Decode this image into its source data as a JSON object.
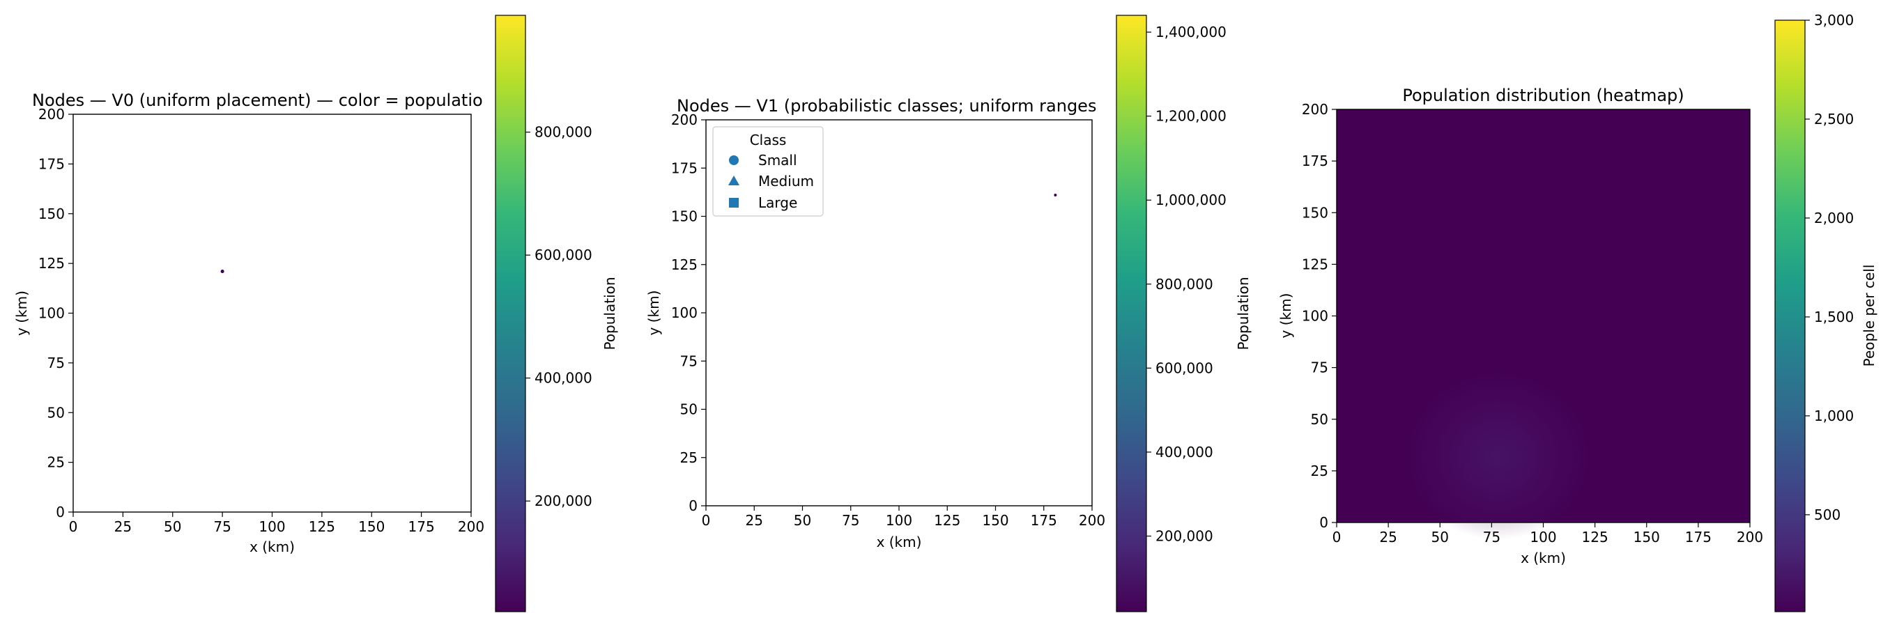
{
  "colors": {
    "viridis": [
      "#440154",
      "#482878",
      "#3e4989",
      "#31688e",
      "#26828e",
      "#1f9e89",
      "#35b779",
      "#6ece58",
      "#b5de2b",
      "#fde725"
    ],
    "marker": "#1f77b4",
    "heatmap_background": "#440154",
    "heatmap_blob": "#481a6c"
  },
  "chart_data": [
    {
      "type": "scatter",
      "title": "Nodes — V0 (uniform placement) — color = populatio",
      "xlabel": "x (km)",
      "ylabel": "y (km)",
      "xlim": [
        0,
        200
      ],
      "ylim": [
        0,
        200
      ],
      "xticks": [
        0,
        25,
        50,
        75,
        100,
        125,
        150,
        175,
        200
      ],
      "yticks": [
        0,
        25,
        50,
        75,
        100,
        125,
        150,
        175,
        200
      ],
      "xtick_labels": [
        "0",
        "25",
        "50",
        "75",
        "100",
        "125",
        "150",
        "175",
        "200"
      ],
      "ytick_labels": [
        "0",
        "25",
        "50",
        "75",
        "100",
        "125",
        "150",
        "175",
        "200"
      ],
      "points": [
        {
          "x": 75,
          "y": 121
        }
      ],
      "colorbar": {
        "label": "Population",
        "range": [
          20000,
          990000
        ],
        "ticks": [
          200000,
          400000,
          600000,
          800000
        ],
        "tick_labels": [
          "200,000",
          "400,000",
          "600,000",
          "800,000"
        ]
      }
    },
    {
      "type": "scatter",
      "title": "Nodes — V1 (probabilistic classes; uniform ranges",
      "xlabel": "x (km)",
      "ylabel": "y (km)",
      "xlim": [
        0,
        200
      ],
      "ylim": [
        0,
        200
      ],
      "xticks": [
        0,
        25,
        50,
        75,
        100,
        125,
        150,
        175,
        200
      ],
      "yticks": [
        0,
        25,
        50,
        75,
        100,
        125,
        150,
        175,
        200
      ],
      "xtick_labels": [
        "0",
        "25",
        "50",
        "75",
        "100",
        "125",
        "150",
        "175",
        "200"
      ],
      "ytick_labels": [
        "0",
        "25",
        "50",
        "75",
        "100",
        "125",
        "150",
        "175",
        "200"
      ],
      "points": [
        {
          "x": 181,
          "y": 161
        }
      ],
      "legend": {
        "title": "Class",
        "placement": "upper-left",
        "entries": [
          {
            "label": "Small",
            "marker": "circle"
          },
          {
            "label": "Medium",
            "marker": "triangle"
          },
          {
            "label": "Large",
            "marker": "square"
          }
        ]
      },
      "colorbar": {
        "label": "Population",
        "range": [
          20000,
          1440000
        ],
        "ticks": [
          200000,
          400000,
          600000,
          800000,
          1000000,
          1200000,
          1400000
        ],
        "tick_labels": [
          "200,000",
          "400,000",
          "600,000",
          "800,000",
          "1,000,000",
          "1,200,000",
          "1,400,000"
        ]
      }
    },
    {
      "type": "heatmap",
      "title": "Population distribution (heatmap)",
      "xlabel": "x (km)",
      "ylabel": "y (km)",
      "xlim": [
        0,
        200
      ],
      "ylim": [
        0,
        200
      ],
      "xticks": [
        0,
        25,
        50,
        75,
        100,
        125,
        150,
        175,
        200
      ],
      "yticks": [
        0,
        25,
        50,
        75,
        100,
        125,
        150,
        175,
        200
      ],
      "xtick_labels": [
        "0",
        "25",
        "50",
        "75",
        "100",
        "125",
        "150",
        "175",
        "200"
      ],
      "ytick_labels": [
        "0",
        "25",
        "50",
        "75",
        "100",
        "125",
        "150",
        "175",
        "200"
      ],
      "hotspot": {
        "x": 78,
        "y": 32
      },
      "colorbar": {
        "label": "People per cell",
        "range": [
          10,
          3000
        ],
        "ticks": [
          500,
          1000,
          1500,
          2000,
          2500,
          3000
        ],
        "tick_labels": [
          "500",
          "1,000",
          "1,500",
          "2,000",
          "2,500",
          "3,000"
        ]
      }
    }
  ]
}
